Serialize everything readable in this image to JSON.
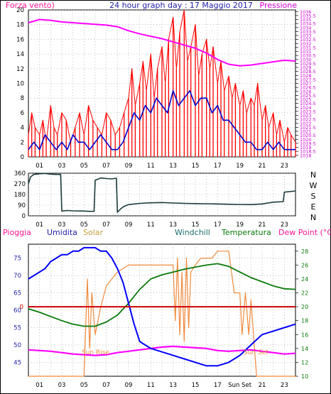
{
  "header": {
    "left_label": "Forza vento)",
    "title": "24 hour graph day : 17 Maggio 2017",
    "right_label": "Pressione"
  },
  "labels": {
    "pioggia": "Pioggia",
    "umidita": "Umidita",
    "solar": "Solar",
    "windchill": "Windchill",
    "temperatura": "Temperatura",
    "dewpoint": "Dew Point (°C)",
    "sunrise": "Sun Rise",
    "sunset": "Sun Set",
    "sunset_axis": "Sun Set"
  },
  "colors": {
    "frame": "#000000",
    "grid": "#9a9a9a",
    "wind_gust": "#ff0000",
    "wind_avg": "#0000cc",
    "pressure": "#ff00ff",
    "direction": "#1c3a3a",
    "rain": "#cc0000",
    "humidity": "#0000ff",
    "solar": "#f08a3c",
    "windchill": "#1c6e6e",
    "temperature": "#0a7a0a",
    "dewpoint": "#ff00ff",
    "left_pink": "#ff1493",
    "right_magenta": "#cc00cc",
    "title_blue": "#2222aa",
    "solar_label": "#c8a040"
  },
  "chart_data": [
    {
      "type": "line",
      "name": "wind-and-pressure",
      "title": "24 hour graph day : 17 Maggio 2017",
      "x_ticks": [
        "01",
        "03",
        "05",
        "07",
        "09",
        "11",
        "13",
        "15",
        "17",
        "19",
        "21",
        "23"
      ],
      "xlim": [
        0,
        24
      ],
      "ylim_left": [
        0,
        20
      ],
      "yticks_left": [
        "0",
        "2",
        "4",
        "6",
        "8",
        "10",
        "12",
        "14",
        "16",
        "18",
        "20"
      ],
      "ylim_right": [
        1017.8,
        1036.2
      ],
      "yticks_right": [
        "1018",
        "1018.5",
        "1019",
        "1019.5",
        "1020",
        "1020.5",
        "1021",
        "1021.5",
        "1022",
        "1022.5",
        "1023",
        "1023.5",
        "1024",
        "1024.5",
        "1025",
        "1025.5",
        "1026",
        "1026.5",
        "1027",
        "1027.5",
        "1028",
        "1028.5",
        "1029",
        "1029.5",
        "1030",
        "1030.5",
        "1031",
        "1031.5",
        "1032",
        "1032.5",
        "1033",
        "1033.5",
        "1034",
        "1034.5",
        "1035",
        "1035.5",
        "1036"
      ],
      "series": [
        {
          "name": "Forza vento)",
          "role": "gust",
          "x": [
            0,
            0.3,
            0.6,
            1,
            1.3,
            1.6,
            2,
            2.3,
            2.6,
            3,
            3.4,
            3.8,
            4.2,
            4.6,
            5,
            5.4,
            5.8,
            6.2,
            6.6,
            7,
            7.4,
            7.8,
            8.2,
            8.6,
            9,
            9.3,
            9.6,
            10,
            10.3,
            10.6,
            11,
            11.3,
            11.6,
            12,
            12.3,
            12.6,
            13,
            13.3,
            13.6,
            14,
            14.3,
            14.6,
            15,
            15.3,
            15.6,
            16,
            16.3,
            16.6,
            17,
            17.3,
            17.6,
            18,
            18.3,
            18.6,
            19,
            19.3,
            19.6,
            20,
            20.3,
            20.6,
            21,
            21.3,
            21.6,
            22,
            22.3,
            22.6,
            23,
            23.3,
            23.6,
            24
          ],
          "values": [
            3,
            6,
            4,
            3,
            5,
            2,
            7,
            4,
            3,
            6,
            5,
            2,
            4,
            6,
            3,
            7,
            5,
            4,
            3,
            6,
            5,
            3,
            4,
            6,
            8,
            12,
            7,
            10,
            13,
            9,
            14,
            8,
            12,
            15,
            10,
            16,
            19,
            12,
            17,
            20,
            13,
            15,
            18,
            11,
            14,
            16,
            12,
            15,
            10,
            13,
            9,
            11,
            8,
            10,
            7,
            9,
            6,
            8,
            7,
            10,
            5,
            7,
            4,
            6,
            3,
            5,
            2,
            4,
            3,
            2
          ]
        },
        {
          "name": "avg",
          "role": "average",
          "x": [
            0,
            0.5,
            1,
            1.5,
            2,
            2.5,
            3,
            3.5,
            4,
            4.5,
            5,
            5.5,
            6,
            6.5,
            7,
            7.5,
            8,
            8.5,
            9,
            9.5,
            10,
            10.5,
            11,
            11.5,
            12,
            12.5,
            13,
            13.5,
            14,
            14.5,
            15,
            15.5,
            16,
            16.5,
            17,
            17.5,
            18,
            18.5,
            19,
            19.5,
            20,
            20.5,
            21,
            21.5,
            22,
            22.5,
            23,
            23.5,
            24
          ],
          "values": [
            1,
            2,
            1,
            3,
            2,
            1,
            2,
            1,
            3,
            2,
            2,
            1,
            2,
            3,
            2,
            1,
            1,
            2,
            4,
            6,
            5,
            7,
            6,
            8,
            7,
            6,
            9,
            7,
            8,
            9,
            7,
            8,
            8,
            6,
            7,
            5,
            5,
            4,
            3,
            2,
            2,
            1,
            1,
            2,
            1,
            2,
            1,
            1,
            1
          ]
        },
        {
          "name": "Pressione",
          "role": "pressure",
          "x": [
            0,
            1,
            2,
            3,
            4,
            5,
            6,
            7,
            8,
            9,
            10,
            11,
            12,
            13,
            14,
            15,
            16,
            17,
            18,
            19,
            20,
            21,
            22,
            23,
            24
          ],
          "values": [
            1034.6,
            1035.0,
            1034.9,
            1034.7,
            1034.6,
            1034.5,
            1034.4,
            1034.3,
            1034.1,
            1033.6,
            1033.2,
            1032.9,
            1032.6,
            1032.2,
            1031.8,
            1031.4,
            1030.8,
            1030.0,
            1029.4,
            1029.2,
            1029.3,
            1029.5,
            1029.7,
            1029.9,
            1029.8
          ]
        }
      ]
    },
    {
      "type": "line",
      "name": "wind-direction",
      "x_ticks": [
        "01",
        "03",
        "05",
        "07",
        "09",
        "11",
        "13",
        "15",
        "17",
        "19",
        "21",
        "23"
      ],
      "xlim": [
        0,
        24
      ],
      "ylim": [
        0,
        360
      ],
      "yticks": [
        "0",
        "90",
        "180",
        "270",
        "360"
      ],
      "compass": [
        "N",
        "W",
        "S",
        "E",
        "N"
      ],
      "series": [
        {
          "name": "direction",
          "x": [
            0,
            0.2,
            0.5,
            1,
            1.5,
            2,
            2.5,
            2.9,
            3.0,
            3.5,
            4,
            5,
            5.5,
            5.9,
            6.0,
            6.5,
            7,
            7.5,
            7.9,
            8.0,
            8.3,
            8.6,
            9,
            10,
            11,
            12,
            13,
            14,
            15,
            16,
            17,
            18,
            19,
            20,
            21,
            22,
            22.9,
            23.0,
            24
          ],
          "values": [
            270,
            330,
            350,
            355,
            358,
            352,
            350,
            350,
            40,
            45,
            42,
            40,
            38,
            38,
            300,
            320,
            315,
            312,
            318,
            30,
            60,
            80,
            95,
            105,
            110,
            112,
            108,
            105,
            103,
            102,
            100,
            98,
            96,
            95,
            100,
            115,
            120,
            200,
            210
          ]
        }
      ]
    },
    {
      "type": "line",
      "name": "weather",
      "x_ticks": [
        "01",
        "03",
        "05",
        "07",
        "09",
        "11",
        "13",
        "15",
        "17",
        "Sun Set",
        "21",
        "23"
      ],
      "xlim": [
        0,
        24
      ],
      "ylim_left": [
        41,
        79
      ],
      "yticks_left": [
        "45",
        "50",
        "55",
        "60",
        "65",
        "70",
        "75"
      ],
      "ylim_right": [
        10,
        29
      ],
      "yticks_right": [
        "10",
        "12",
        "14",
        "16",
        "18",
        "20",
        "22",
        "24",
        "26",
        "28"
      ],
      "rain_value": 0,
      "rain_axis_label": "0",
      "series": [
        {
          "name": "Umidita",
          "role": "humidity",
          "x": [
            0,
            0.5,
            1,
            1.5,
            2,
            2.5,
            3,
            3.5,
            4,
            4.5,
            5,
            5.5,
            6,
            6.5,
            7,
            7.5,
            8,
            8.5,
            9,
            9.5,
            10,
            11,
            12,
            13,
            14,
            15,
            16,
            17,
            18,
            19,
            20,
            21,
            22,
            23,
            24
          ],
          "values": [
            69,
            70,
            71,
            72,
            74,
            75,
            76,
            76,
            77,
            77,
            78,
            78,
            78,
            77,
            77,
            75,
            72,
            68,
            62,
            56,
            51,
            49,
            48,
            47,
            46,
            45,
            44,
            44,
            45,
            47,
            50,
            53,
            54,
            55,
            56
          ]
        },
        {
          "name": "Solar",
          "role": "solar",
          "x": [
            0,
            1,
            2,
            3,
            4,
            5,
            5.3,
            5.5,
            5.7,
            6,
            6.5,
            7,
            7.5,
            8,
            9,
            10,
            11,
            12,
            13,
            13.2,
            13.4,
            13.6,
            13.8,
            14,
            14.2,
            14.4,
            14.6,
            15,
            15.5,
            16,
            16.5,
            17,
            17.5,
            18,
            18.5,
            19,
            19.2,
            19.5,
            19.8,
            20,
            20.5,
            21,
            21.5,
            22,
            23,
            24
          ],
          "values": [
            10,
            10,
            10,
            10,
            10,
            10,
            24,
            14,
            22,
            16,
            20,
            23,
            24,
            25,
            26,
            26,
            26,
            26,
            26,
            18,
            27,
            16,
            25,
            15,
            27,
            17,
            25,
            26,
            27,
            27,
            27,
            28,
            28,
            28,
            22,
            22,
            16,
            22,
            16,
            21,
            10,
            10,
            10,
            10,
            10,
            10
          ]
        },
        {
          "name": "Temperatura",
          "role": "temperature",
          "x": [
            0,
            1,
            2,
            3,
            4,
            5,
            6,
            7,
            8,
            9,
            10,
            11,
            12,
            13,
            14,
            15,
            16,
            17,
            18,
            19,
            20,
            21,
            22,
            23,
            24
          ],
          "values": [
            19.7,
            19.2,
            18.6,
            18.0,
            17.5,
            17.2,
            17.2,
            17.8,
            18.8,
            20.5,
            22.5,
            24.0,
            24.6,
            25.0,
            25.4,
            25.7,
            26.0,
            26.2,
            25.8,
            25.0,
            24.2,
            23.6,
            23.0,
            22.6,
            22.5
          ]
        },
        {
          "name": "Dew Point (°C)",
          "role": "dewpoint",
          "x": [
            0,
            1,
            2,
            3,
            4,
            5,
            6,
            7,
            8,
            9,
            10,
            11,
            12,
            13,
            14,
            15,
            16,
            17,
            18,
            19,
            20,
            21,
            22,
            23,
            24
          ],
          "values": [
            13.8,
            13.7,
            13.6,
            13.4,
            13.2,
            13.1,
            13.0,
            13.1,
            13.4,
            13.6,
            13.8,
            14.0,
            14.2,
            14.3,
            14.2,
            14.1,
            14.0,
            13.7,
            13.6,
            13.7,
            13.8,
            13.6,
            13.4,
            13.2,
            13.3
          ]
        }
      ]
    }
  ]
}
